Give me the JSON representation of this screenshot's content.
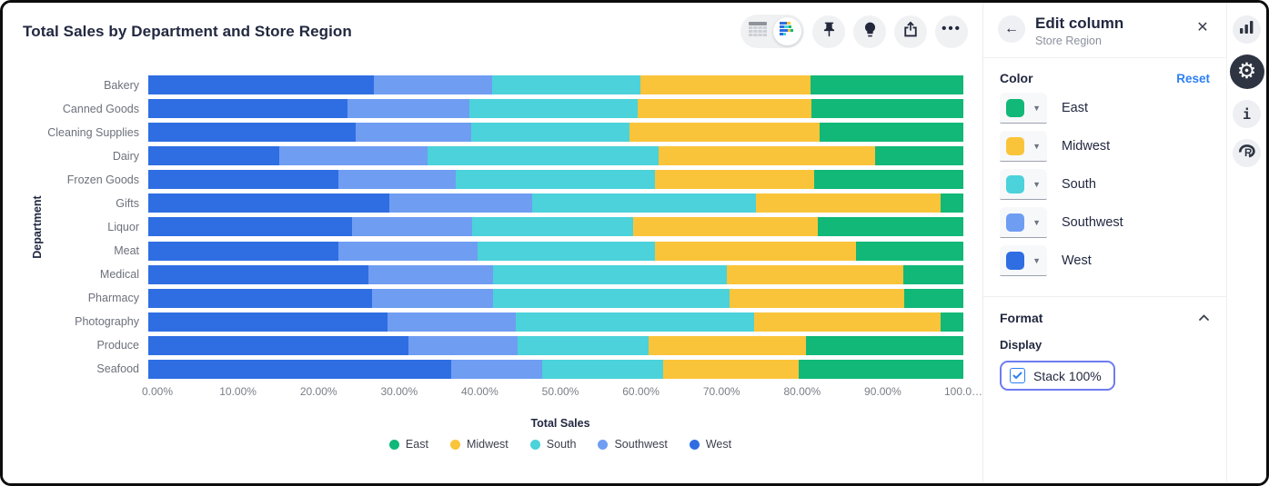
{
  "title": "Total Sales by Department and Store Region",
  "toolbar": {
    "view_toggle": [
      {
        "icon": "table-view-icon",
        "active": false
      },
      {
        "icon": "chart-view-icon",
        "active": true
      }
    ],
    "buttons": [
      {
        "icon": "pin-icon"
      },
      {
        "icon": "lightbulb-icon"
      },
      {
        "icon": "share-icon"
      },
      {
        "icon": "more-dots-icon",
        "glyph": "•••"
      }
    ]
  },
  "chart_data": {
    "type": "bar",
    "orientation": "horizontal",
    "stacked": "100%",
    "title": "Total Sales by Department and Store Region",
    "xlabel": "Total Sales",
    "ylabel": "Department",
    "grid": false,
    "legend_position": "bottom",
    "xlim": [
      0,
      100
    ],
    "x_ticks": [
      "0.00%",
      "10.00%",
      "20.00%",
      "30.00%",
      "40.00%",
      "50.00%",
      "60.00%",
      "70.00%",
      "80.00%",
      "90.00%",
      "100.0…"
    ],
    "categories": [
      "Bakery",
      "Canned Goods",
      "Cleaning Supplies",
      "Dairy",
      "Frozen Goods",
      "Gifts",
      "Liquor",
      "Meat",
      "Medical",
      "Pharmacy",
      "Photography",
      "Produce",
      "Seafood"
    ],
    "stack_order": [
      "West",
      "Southwest",
      "South",
      "Midwest",
      "East"
    ],
    "series": [
      {
        "name": "East",
        "color": "#11b877",
        "values": [
          18.8,
          18.6,
          17.6,
          10.8,
          18.3,
          2.8,
          17.9,
          13.2,
          7.4,
          7.2,
          2.8,
          19.3,
          20.2
        ]
      },
      {
        "name": "Midwest",
        "color": "#fac43a",
        "values": [
          20.8,
          21.4,
          23.4,
          26.6,
          19.5,
          22.7,
          22.6,
          24.6,
          21.6,
          21.5,
          22.9,
          19.3,
          16.6
        ]
      },
      {
        "name": "South",
        "color": "#4bd2da",
        "values": [
          18.2,
          20.6,
          19.4,
          28.3,
          24.5,
          27.4,
          19.8,
          21.8,
          28.7,
          29.0,
          29.2,
          16.1,
          14.9
        ]
      },
      {
        "name": "Southwest",
        "color": "#6f9df2",
        "values": [
          14.5,
          15.0,
          14.2,
          18.2,
          14.4,
          17.5,
          14.7,
          17.1,
          15.3,
          14.9,
          15.8,
          13.4,
          11.1
        ]
      },
      {
        "name": "West",
        "color": "#2f6ee2",
        "values": [
          27.7,
          24.4,
          25.4,
          16.1,
          23.3,
          29.6,
          25.0,
          23.3,
          27.0,
          27.4,
          29.3,
          31.9,
          37.2
        ]
      }
    ]
  },
  "edit_panel": {
    "back_icon": "←",
    "title": "Edit column",
    "subtitle": "Store Region",
    "close_glyph": "✕",
    "color_section": {
      "label": "Color",
      "reset_label": "Reset",
      "rows": [
        {
          "name": "East",
          "color": "#11b877"
        },
        {
          "name": "Midwest",
          "color": "#fac43a"
        },
        {
          "name": "South",
          "color": "#4bd2da"
        },
        {
          "name": "Southwest",
          "color": "#6f9df2"
        },
        {
          "name": "West",
          "color": "#2f6ee2"
        }
      ]
    },
    "format_section": {
      "label": "Format",
      "display_label": "Display",
      "stack_checkbox": {
        "label": "Stack 100%",
        "checked": true
      }
    }
  },
  "right_rail": {
    "icons": [
      "bar-chart-icon",
      "gear-icon",
      "info-icon",
      "r-logo-icon"
    ],
    "active_icon": "gear-icon",
    "more_glyph": "•••"
  },
  "colors": {
    "accent_blue": "#2d7ff3",
    "focus_ring": "#6f7cf0",
    "text_dark": "#222840",
    "text_gray": "#6c717b"
  }
}
